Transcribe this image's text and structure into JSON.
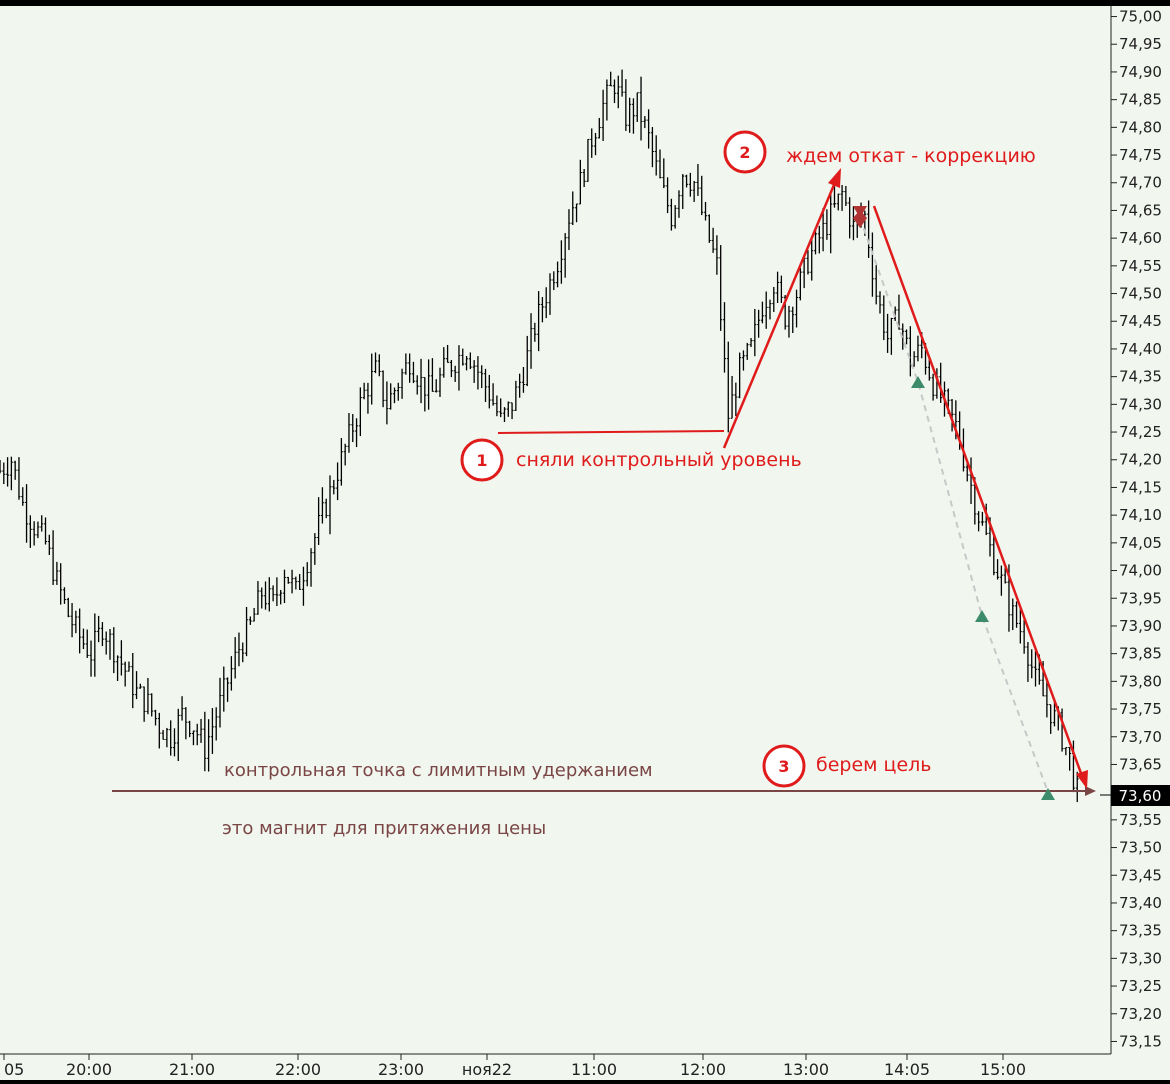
{
  "chart_data": {
    "type": "candlestick",
    "x_tick_labels": [
      "05",
      "20:00",
      "21:00",
      "22:00",
      "23:00",
      "ноя22",
      "11:00",
      "12:00",
      "13:00",
      "14:05",
      "15:00"
    ],
    "y_tick_values": [
      "75,00",
      "74,95",
      "74,90",
      "74,85",
      "74,80",
      "74,75",
      "74,70",
      "74,65",
      "74,60",
      "74,55",
      "74,50",
      "74,45",
      "74,40",
      "74,35",
      "74,30",
      "74,25",
      "74,20",
      "74,15",
      "74,10",
      "74,05",
      "74,00",
      "73,95",
      "73,90",
      "73,85",
      "73,80",
      "73,75",
      "73,70",
      "73,65",
      "73,60",
      "73,55",
      "73,50",
      "73,45",
      "73,40",
      "73,35",
      "73,30",
      "73,25",
      "73,20",
      "73,15"
    ],
    "ylim": [
      73.14,
      75.01
    ],
    "current_price_label": "73,60",
    "current_price": 73.6,
    "grid": false,
    "price_path": [
      [
        0,
        74.18
      ],
      [
        3,
        74.2
      ],
      [
        6,
        74.12
      ],
      [
        9,
        74.08
      ],
      [
        12,
        74.05
      ],
      [
        15,
        73.98
      ],
      [
        18,
        73.92
      ],
      [
        21,
        73.88
      ],
      [
        24,
        73.85
      ],
      [
        27,
        73.9
      ],
      [
        30,
        73.86
      ],
      [
        33,
        73.82
      ],
      [
        36,
        73.78
      ],
      [
        39,
        73.76
      ],
      [
        42,
        73.72
      ],
      [
        45,
        73.7
      ],
      [
        48,
        73.74
      ],
      [
        51,
        73.72
      ],
      [
        54,
        73.68
      ],
      [
        57,
        73.74
      ],
      [
        60,
        73.8
      ],
      [
        63,
        73.86
      ],
      [
        66,
        73.9
      ],
      [
        69,
        73.96
      ],
      [
        72,
        73.94
      ],
      [
        75,
        74.0
      ],
      [
        78,
        73.96
      ],
      [
        81,
        74.02
      ],
      [
        84,
        74.08
      ],
      [
        87,
        74.14
      ],
      [
        90,
        74.2
      ],
      [
        93,
        74.26
      ],
      [
        96,
        74.32
      ],
      [
        99,
        74.36
      ],
      [
        102,
        74.3
      ],
      [
        105,
        74.34
      ],
      [
        108,
        74.38
      ],
      [
        111,
        74.34
      ],
      [
        114,
        74.32
      ],
      [
        117,
        74.36
      ],
      [
        120,
        74.38
      ],
      [
        123,
        74.4
      ],
      [
        126,
        74.36
      ],
      [
        129,
        74.32
      ],
      [
        132,
        74.27
      ],
      [
        135,
        74.3
      ],
      [
        138,
        74.36
      ],
      [
        141,
        74.44
      ],
      [
        144,
        74.5
      ],
      [
        147,
        74.56
      ],
      [
        150,
        74.64
      ],
      [
        153,
        74.7
      ],
      [
        156,
        74.78
      ],
      [
        159,
        74.84
      ],
      [
        162,
        74.88
      ],
      [
        165,
        74.82
      ],
      [
        168,
        74.84
      ],
      [
        171,
        74.78
      ],
      [
        174,
        74.7
      ],
      [
        177,
        74.64
      ],
      [
        180,
        74.72
      ],
      [
        183,
        74.7
      ],
      [
        186,
        74.62
      ],
      [
        189,
        74.55
      ],
      [
        192,
        74.28
      ],
      [
        195,
        74.36
      ],
      [
        198,
        74.4
      ],
      [
        201,
        74.48
      ],
      [
        204,
        74.52
      ],
      [
        207,
        74.46
      ],
      [
        210,
        74.5
      ],
      [
        213,
        74.56
      ],
      [
        216,
        74.6
      ],
      [
        219,
        74.64
      ],
      [
        222,
        74.68
      ],
      [
        225,
        74.62
      ],
      [
        228,
        74.64
      ],
      [
        231,
        74.5
      ],
      [
        234,
        74.42
      ],
      [
        237,
        74.46
      ],
      [
        240,
        74.38
      ],
      [
        243,
        74.4
      ],
      [
        246,
        74.34
      ],
      [
        249,
        74.3
      ],
      [
        252,
        74.26
      ],
      [
        255,
        74.18
      ],
      [
        258,
        74.1
      ],
      [
        261,
        74.04
      ],
      [
        264,
        73.98
      ],
      [
        267,
        73.92
      ],
      [
        270,
        73.88
      ],
      [
        273,
        73.8
      ],
      [
        276,
        73.76
      ],
      [
        279,
        73.72
      ],
      [
        282,
        73.66
      ],
      [
        284,
        73.6
      ]
    ],
    "xlim": [
      0,
      290
    ]
  },
  "annotations": {
    "note_1": "сняли контрольный уровень",
    "note_2": "ждем откат  - коррекцию",
    "note_3": "берем цель",
    "circle_1": "1",
    "circle_2": "2",
    "circle_3": "3",
    "level_caption_1": "контрольная точка с лимитным удержанием",
    "level_caption_2": "это магнит для притяжения цены"
  },
  "colors": {
    "background": "#f1f6ef",
    "candle": "#000000",
    "annotation_red": "#e01b1b",
    "level_line": "#7a4545",
    "buy_marker": "#3c8c6a",
    "sell_marker": "#b03434",
    "trade_dash": "#c0c0c0"
  }
}
